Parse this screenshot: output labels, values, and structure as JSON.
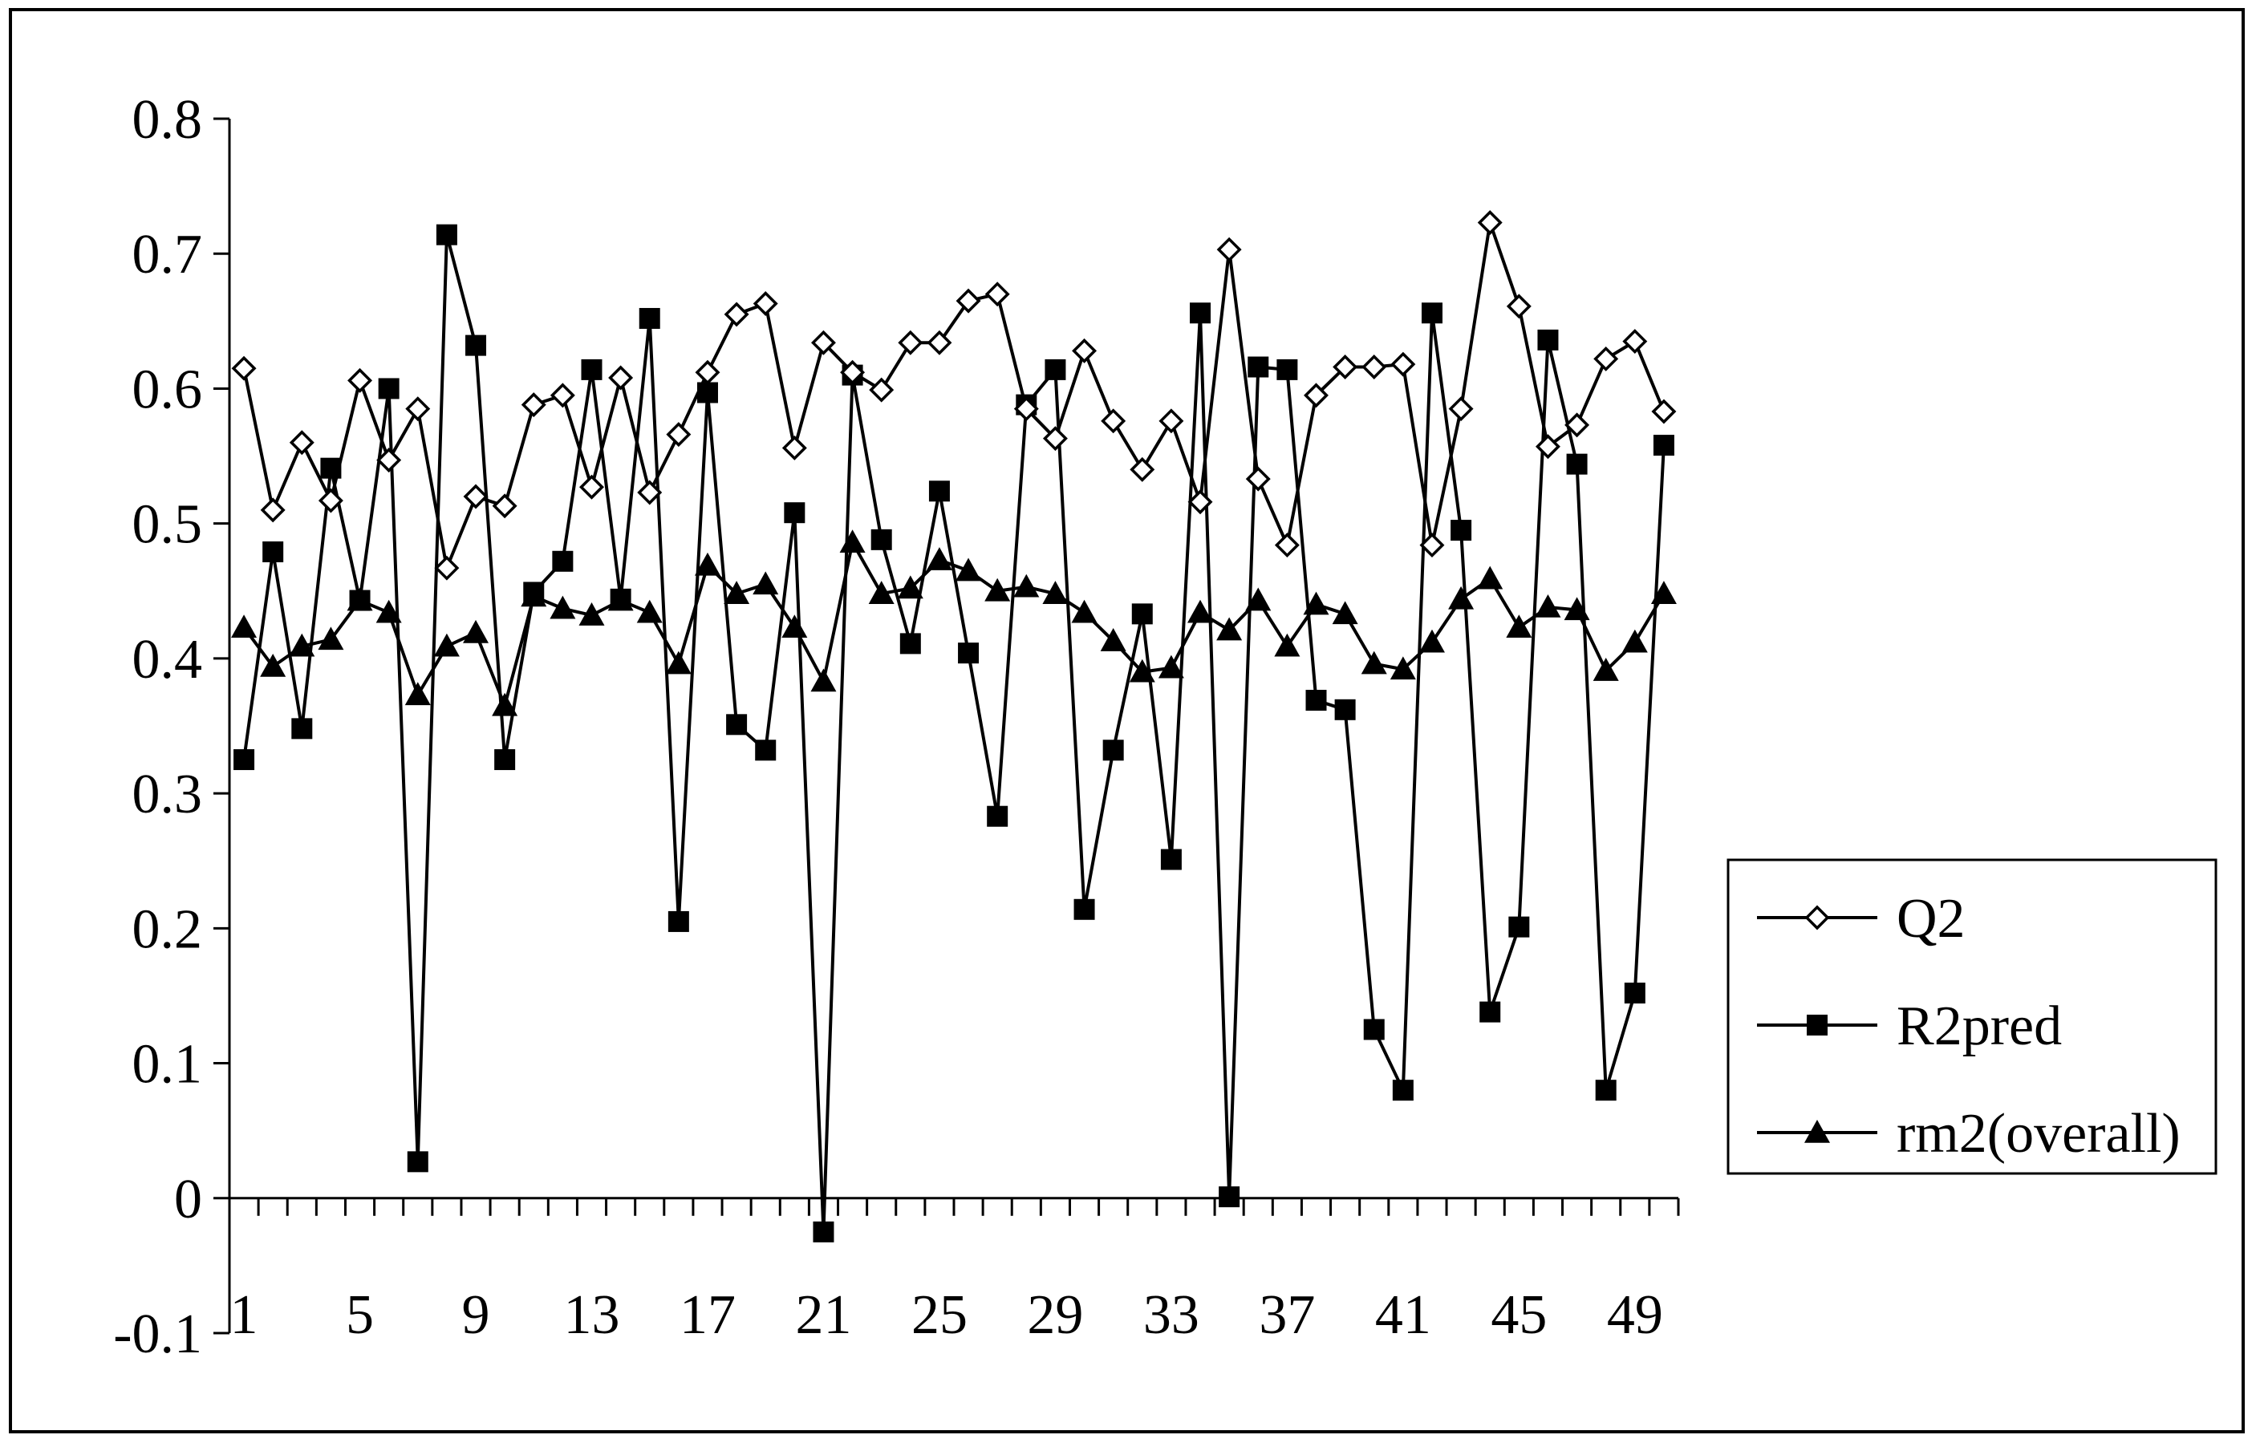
{
  "chart_data": {
    "type": "line",
    "title": "",
    "xlabel": "",
    "ylabel": "",
    "ylim": [
      -0.1,
      0.8
    ],
    "yticks": [
      -0.1,
      0,
      0.1,
      0.2,
      0.3,
      0.4,
      0.5,
      0.6,
      0.7,
      0.8
    ],
    "ytick_labels": [
      "-0.1",
      "0",
      "0.1",
      "0.2",
      "0.3",
      "0.4",
      "0.5",
      "0.6",
      "0.7",
      "0.8"
    ],
    "xtick_labels": [
      "1",
      "5",
      "9",
      "13",
      "17",
      "21",
      "25",
      "29",
      "33",
      "37",
      "41",
      "45",
      "49"
    ],
    "x": [
      1,
      2,
      3,
      4,
      5,
      6,
      7,
      8,
      9,
      10,
      11,
      12,
      13,
      14,
      15,
      16,
      17,
      18,
      19,
      20,
      21,
      22,
      23,
      24,
      25,
      26,
      27,
      28,
      29,
      30,
      31,
      32,
      33,
      34,
      35,
      36,
      37,
      38,
      39,
      40,
      41,
      42,
      43,
      44,
      45,
      46,
      47,
      48,
      49,
      50
    ],
    "grid": false,
    "legend_position": "right",
    "series": [
      {
        "name": "Q2",
        "marker": "diamond-open",
        "values": [
          0.615,
          0.51,
          0.56,
          0.517,
          0.606,
          0.547,
          0.585,
          0.467,
          0.52,
          0.513,
          0.588,
          0.595,
          0.527,
          0.608,
          0.523,
          0.566,
          0.612,
          0.655,
          0.663,
          0.556,
          0.634,
          0.612,
          0.599,
          0.634,
          0.634,
          0.665,
          0.67,
          0.585,
          0.563,
          0.628,
          0.576,
          0.54,
          0.576,
          0.516,
          0.703,
          0.533,
          0.484,
          0.595,
          0.616,
          0.616,
          0.618,
          0.484,
          0.585,
          0.723,
          0.661,
          0.557,
          0.573,
          0.622,
          0.635,
          0.583
        ]
      },
      {
        "name": "R2pred",
        "marker": "square-filled",
        "values": [
          0.325,
          0.479,
          0.348,
          0.541,
          0.443,
          0.6,
          0.027,
          0.714,
          0.632,
          0.325,
          0.449,
          0.472,
          0.614,
          0.444,
          0.652,
          0.205,
          0.597,
          0.351,
          0.332,
          0.508,
          -0.025,
          0.61,
          0.488,
          0.411,
          0.524,
          0.404,
          0.283,
          0.588,
          0.614,
          0.214,
          0.332,
          0.433,
          0.251,
          0.656,
          0.001,
          0.616,
          0.614,
          0.369,
          0.362,
          0.125,
          0.08,
          0.656,
          0.495,
          0.138,
          0.201,
          0.636,
          0.544,
          0.08,
          0.152,
          0.558
        ]
      },
      {
        "name": "rm2(overall)",
        "marker": "triangle-filled",
        "values": [
          0.423,
          0.394,
          0.409,
          0.414,
          0.443,
          0.434,
          0.373,
          0.409,
          0.419,
          0.365,
          0.446,
          0.437,
          0.432,
          0.443,
          0.434,
          0.396,
          0.469,
          0.448,
          0.455,
          0.423,
          0.383,
          0.486,
          0.448,
          0.452,
          0.473,
          0.465,
          0.45,
          0.453,
          0.448,
          0.434,
          0.413,
          0.39,
          0.393,
          0.434,
          0.421,
          0.443,
          0.409,
          0.44,
          0.433,
          0.396,
          0.392,
          0.412,
          0.444,
          0.459,
          0.423,
          0.438,
          0.436,
          0.391,
          0.412,
          0.448
        ]
      }
    ]
  }
}
